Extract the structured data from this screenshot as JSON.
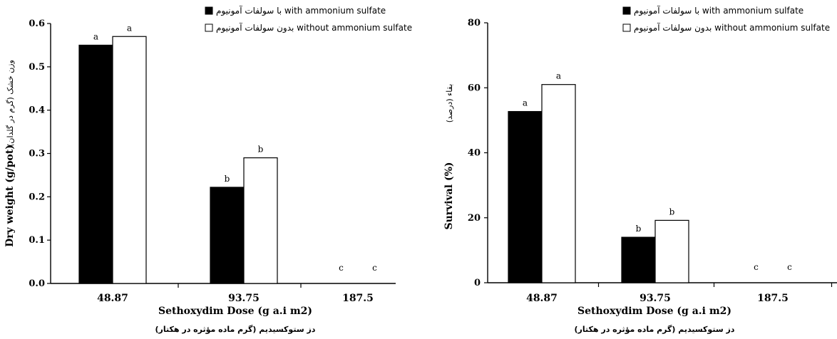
{
  "chart_data": [
    {
      "type": "bar",
      "categories": [
        "48.87",
        "93.75",
        "187.5"
      ],
      "series": [
        {
          "name": "با سولفات آمونیوم with ammonium sulfate",
          "values": [
            0.55,
            0.222,
            0.0
          ],
          "labels": [
            "a",
            "b",
            "c"
          ],
          "color": "#000000"
        },
        {
          "name": "بدون سولفات آمونیوم without ammonium sulfate",
          "values": [
            0.57,
            0.29,
            0.0
          ],
          "labels": [
            "a",
            "b",
            "c"
          ],
          "color": "#ffffff"
        }
      ],
      "ylabel": "Dry weight (g/pot)",
      "ylabel_fa": "وزن خشک (گرم در گلدان)",
      "xlabel": "Sethoxydim Dose (g a.i m2)",
      "xlabel_fa": "دز ستوکسیدیم (گرم ماده مؤثره در هکتار)",
      "ylim": [
        0,
        0.6
      ],
      "yticks": [
        "0.0",
        "0.1",
        "0.2",
        "0.3",
        "0.4",
        "0.5",
        "0.6"
      ],
      "grid": false,
      "legend_position": "top-right"
    },
    {
      "type": "bar",
      "categories": [
        "48.87",
        "93.75",
        "187.5"
      ],
      "series": [
        {
          "name": "با سولفات آمونیوم with ammonium sulfate",
          "values": [
            52.7,
            14.0,
            0.0
          ],
          "labels": [
            "a",
            "b",
            "c"
          ],
          "color": "#000000"
        },
        {
          "name": "بدون سولفات آمونیوم without ammonium sulfate",
          "values": [
            61.0,
            19.2,
            0.0
          ],
          "labels": [
            "a",
            "b",
            "c"
          ],
          "color": "#ffffff"
        }
      ],
      "ylabel": "Survival (%)",
      "ylabel_fa": "بقاء (درصد)",
      "xlabel": "Sethoxydim Dose (g a.i m2)",
      "xlabel_fa": "دز ستوکسیدیم (گرم ماده مؤثره در هکتار)",
      "ylim": [
        0,
        80
      ],
      "yticks": [
        "0",
        "20",
        "40",
        "60",
        "80"
      ],
      "grid": false,
      "legend_position": "top-right"
    }
  ]
}
